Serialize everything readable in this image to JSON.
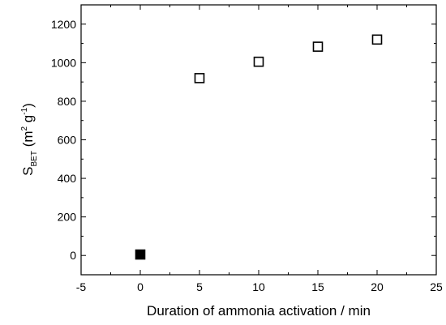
{
  "chart_data": {
    "type": "scatter",
    "xlabel": "Duration of ammonia activation / min",
    "ylabel": {
      "main": "S",
      "subscript": "BET",
      "unit_open": " (m",
      "unit_exp1": "2",
      "unit_mid": " g",
      "unit_exp2": "-1",
      "unit_close": ")"
    },
    "xlim": [
      -5,
      25
    ],
    "ylim": [
      -100,
      1300
    ],
    "x_ticks": [
      -5,
      0,
      5,
      10,
      15,
      20,
      25
    ],
    "y_ticks": [
      0,
      200,
      400,
      600,
      800,
      1000,
      1200
    ],
    "grid": false,
    "legend": "none",
    "series": [
      {
        "marker": "filled-square",
        "color": "#000000",
        "points": [
          {
            "x": 0,
            "y": 5
          }
        ]
      },
      {
        "marker": "open-square",
        "color": "#000000",
        "points": [
          {
            "x": 5,
            "y": 920
          },
          {
            "x": 10,
            "y": 1005
          },
          {
            "x": 15,
            "y": 1083
          },
          {
            "x": 20,
            "y": 1120
          }
        ]
      }
    ]
  }
}
